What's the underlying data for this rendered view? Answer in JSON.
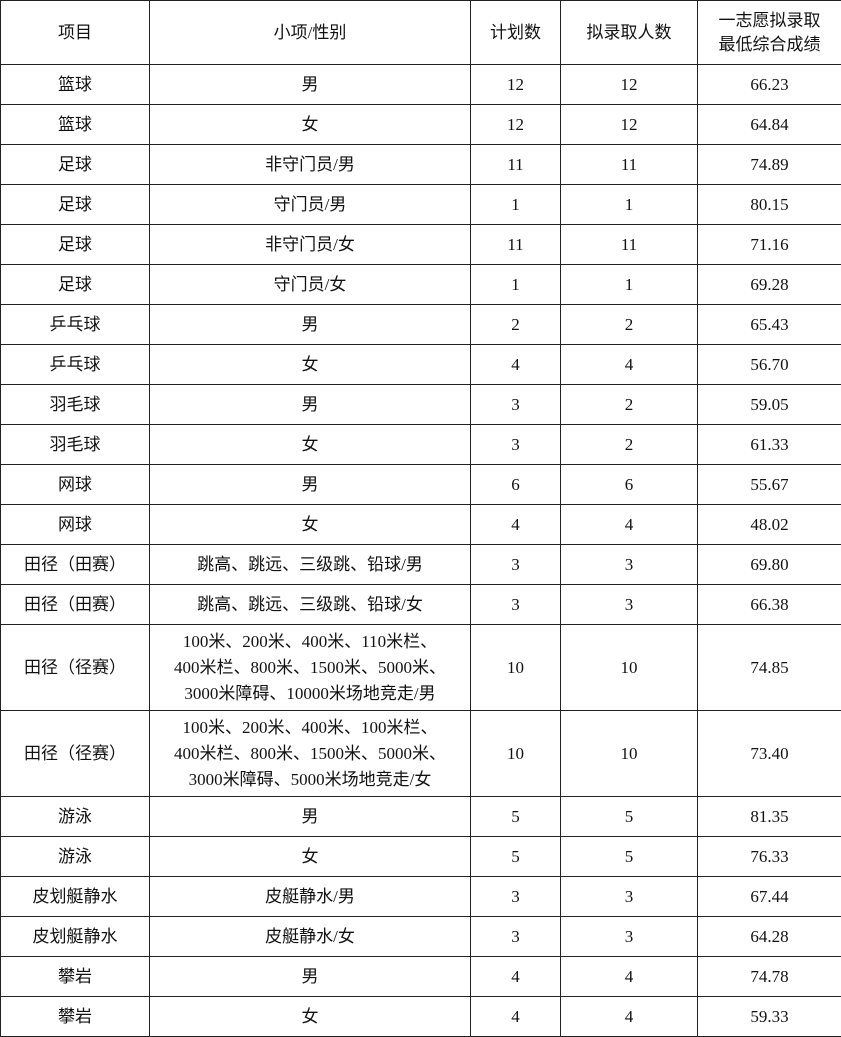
{
  "table": {
    "headers": [
      "项目",
      "小项/性别",
      "计划数",
      "拟录取人数",
      "一志愿拟录取\n最低综合成绩"
    ],
    "rows": [
      [
        "篮球",
        "男",
        "12",
        "12",
        "66.23"
      ],
      [
        "篮球",
        "女",
        "12",
        "12",
        "64.84"
      ],
      [
        "足球",
        "非守门员/男",
        "11",
        "11",
        "74.89"
      ],
      [
        "足球",
        "守门员/男",
        "1",
        "1",
        "80.15"
      ],
      [
        "足球",
        "非守门员/女",
        "11",
        "11",
        "71.16"
      ],
      [
        "足球",
        "守门员/女",
        "1",
        "1",
        "69.28"
      ],
      [
        "乒乓球",
        "男",
        "2",
        "2",
        "65.43"
      ],
      [
        "乒乓球",
        "女",
        "4",
        "4",
        "56.70"
      ],
      [
        "羽毛球",
        "男",
        "3",
        "2",
        "59.05"
      ],
      [
        "羽毛球",
        "女",
        "3",
        "2",
        "61.33"
      ],
      [
        "网球",
        "男",
        "6",
        "6",
        "55.67"
      ],
      [
        "网球",
        "女",
        "4",
        "4",
        "48.02"
      ],
      [
        "田径（田赛）",
        "跳高、跳远、三级跳、铅球/男",
        "3",
        "3",
        "69.80"
      ],
      [
        "田径（田赛）",
        "跳高、跳远、三级跳、铅球/女",
        "3",
        "3",
        "66.38"
      ],
      [
        "田径（径赛）",
        "100米、200米、400米、110米栏、\n400米栏、800米、1500米、5000米、\n3000米障碍、10000米场地竞走/男",
        "10",
        "10",
        "74.85"
      ],
      [
        "田径（径赛）",
        "100米、200米、400米、100米栏、\n400米栏、800米、1500米、5000米、\n3000米障碍、5000米场地竞走/女",
        "10",
        "10",
        "73.40"
      ],
      [
        "游泳",
        "男",
        "5",
        "5",
        "81.35"
      ],
      [
        "游泳",
        "女",
        "5",
        "5",
        "76.33"
      ],
      [
        "皮划艇静水",
        "皮艇静水/男",
        "3",
        "3",
        "67.44"
      ],
      [
        "皮划艇静水",
        "皮艇静水/女",
        "3",
        "3",
        "64.28"
      ],
      [
        "攀岩",
        "男",
        "4",
        "4",
        "74.78"
      ],
      [
        "攀岩",
        "女",
        "4",
        "4",
        "59.33"
      ]
    ]
  }
}
